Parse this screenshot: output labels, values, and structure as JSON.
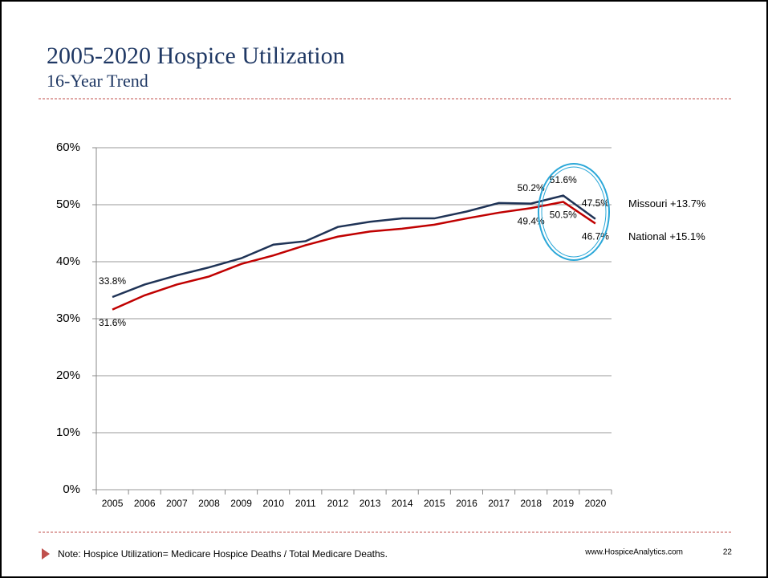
{
  "chart_data": {
    "type": "line",
    "title": "2005-2020 Hospice Utilization",
    "subtitle": "16-Year Trend",
    "categories": [
      "2005",
      "2006",
      "2007",
      "2008",
      "2009",
      "2010",
      "2011",
      "2012",
      "2013",
      "2014",
      "2015",
      "2016",
      "2017",
      "2018",
      "2019",
      "2020"
    ],
    "series": [
      {
        "name": "Missouri",
        "change": "+13.7%",
        "color": "#1f3356",
        "values": [
          33.8,
          36.0,
          37.6,
          39.0,
          40.6,
          43.0,
          43.6,
          46.1,
          47.0,
          47.6,
          47.6,
          48.8,
          50.3,
          50.2,
          51.6,
          47.5
        ],
        "value_labels": [
          "33.8%",
          null,
          null,
          null,
          null,
          null,
          null,
          null,
          null,
          null,
          null,
          null,
          null,
          "50.2%",
          "51.6%",
          "47.5%"
        ]
      },
      {
        "name": "National",
        "change": "+15.1%",
        "color": "#c00000",
        "values": [
          31.6,
          34.1,
          36.0,
          37.4,
          39.6,
          41.1,
          42.9,
          44.4,
          45.3,
          45.8,
          46.5,
          47.6,
          48.6,
          49.4,
          50.5,
          46.7
        ],
        "value_labels": [
          "31.6%",
          null,
          null,
          null,
          null,
          null,
          null,
          null,
          null,
          null,
          null,
          null,
          null,
          "49.4%",
          "50.5%",
          "46.7%"
        ]
      }
    ],
    "ylim": [
      0,
      60
    ],
    "yticks": [
      {
        "value": 0,
        "label": "0%"
      },
      {
        "value": 10,
        "label": "10%"
      },
      {
        "value": 20,
        "label": "20%"
      },
      {
        "value": 30,
        "label": "30%"
      },
      {
        "value": 40,
        "label": "40%"
      },
      {
        "value": 50,
        "label": "50%"
      },
      {
        "value": 60,
        "label": "60%"
      }
    ],
    "grid": true,
    "note": "Note: Hospice Utilization= Medicare Hospice Deaths / Total Medicare Deaths.",
    "website": "www.HospiceAnalytics.com",
    "page_number": "22"
  }
}
